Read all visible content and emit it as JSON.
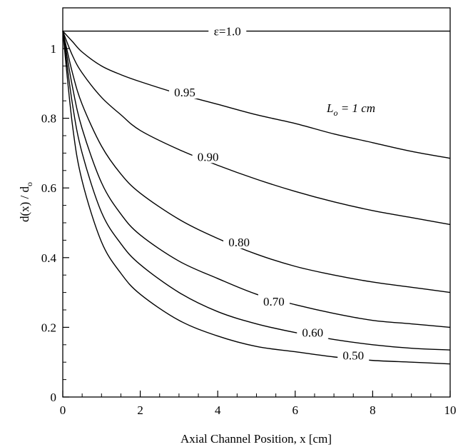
{
  "chart_data": {
    "type": "line",
    "title": "",
    "xlabel": "Axial Channel Position, x [cm]",
    "ylabel_main": "d(x) / d",
    "ylabel_sub": "o",
    "xlim": [
      0,
      10
    ],
    "ylim": [
      0,
      1.05
    ],
    "x_ticks": [
      0,
      2,
      4,
      6,
      8,
      10
    ],
    "y_ticks": [
      0,
      0.2,
      0.4,
      0.6,
      0.8,
      1
    ],
    "x_tick_labels": [
      "0",
      "2",
      "4",
      "6",
      "8",
      "10"
    ],
    "y_tick_labels": [
      "0",
      "0.2",
      "0.4",
      "0.6",
      "0.8",
      "1"
    ],
    "grid": false,
    "annotation": {
      "main": "L",
      "sub": "o",
      "rest": " = 1 cm"
    },
    "x": [
      0,
      0.25,
      0.5,
      1,
      1.5,
      2,
      3,
      4,
      5,
      6,
      7,
      8,
      9,
      10
    ],
    "series": [
      {
        "name": "ε=1.0",
        "values": [
          1.05,
          1.05,
          1.05,
          1.05,
          1.05,
          1.05,
          1.05,
          1.05,
          1.05,
          1.05,
          1.05,
          1.05,
          1.05,
          1.05
        ]
      },
      {
        "name": "0.95",
        "values": [
          1.05,
          1.02,
          0.99,
          0.95,
          0.925,
          0.905,
          0.87,
          0.84,
          0.81,
          0.785,
          0.755,
          0.73,
          0.705,
          0.685
        ]
      },
      {
        "name": "0.90",
        "values": [
          1.05,
          0.98,
          0.93,
          0.86,
          0.81,
          0.765,
          0.71,
          0.665,
          0.625,
          0.59,
          0.56,
          0.535,
          0.515,
          0.495
        ]
      },
      {
        "name": "0.80",
        "values": [
          1.05,
          0.93,
          0.84,
          0.72,
          0.64,
          0.585,
          0.51,
          0.455,
          0.41,
          0.375,
          0.35,
          0.33,
          0.315,
          0.3
        ]
      },
      {
        "name": "0.70",
        "values": [
          1.05,
          0.89,
          0.77,
          0.615,
          0.525,
          0.465,
          0.39,
          0.34,
          0.295,
          0.265,
          0.24,
          0.22,
          0.21,
          0.2
        ]
      },
      {
        "name": "0.60",
        "values": [
          1.05,
          0.84,
          0.7,
          0.53,
          0.44,
          0.38,
          0.3,
          0.245,
          0.21,
          0.185,
          0.165,
          0.15,
          0.14,
          0.135
        ]
      },
      {
        "name": "0.50",
        "values": [
          1.05,
          0.78,
          0.62,
          0.445,
          0.355,
          0.295,
          0.22,
          0.175,
          0.145,
          0.13,
          0.115,
          0.105,
          0.1,
          0.095
        ]
      }
    ],
    "label_positions_data": [
      {
        "x": 4.25,
        "y": 1.05
      },
      {
        "x": 3.15,
        "y": 0.875
      },
      {
        "x": 3.75,
        "y": 0.69
      },
      {
        "x": 4.55,
        "y": 0.445
      },
      {
        "x": 5.45,
        "y": 0.275
      },
      {
        "x": 6.45,
        "y": 0.185
      },
      {
        "x": 7.5,
        "y": 0.12
      }
    ]
  }
}
